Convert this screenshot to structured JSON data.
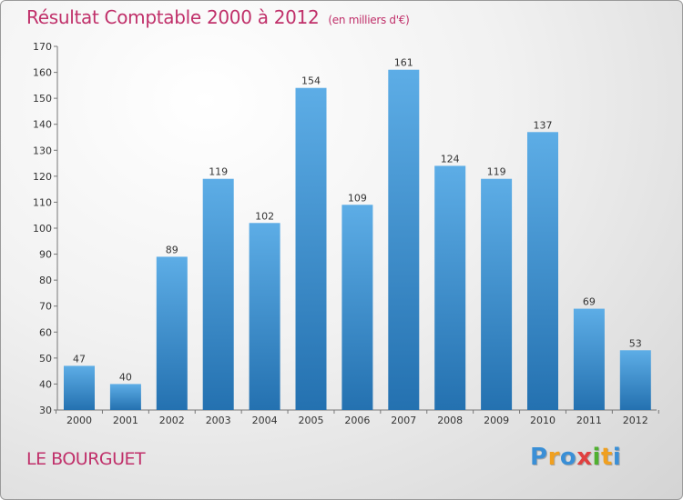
{
  "chart_data": {
    "type": "bar",
    "title": "Résultat Comptable 2000 à 2012",
    "subtitle": "(en milliers d'€)",
    "categories": [
      "2000",
      "2001",
      "2002",
      "2003",
      "2004",
      "2005",
      "2006",
      "2007",
      "2008",
      "2009",
      "2010",
      "2011",
      "2012"
    ],
    "values": [
      47,
      40,
      89,
      119,
      102,
      154,
      109,
      161,
      124,
      119,
      137,
      69,
      53
    ],
    "yticks": [
      30,
      40,
      50,
      60,
      70,
      80,
      90,
      100,
      110,
      120,
      130,
      140,
      150,
      160,
      170
    ],
    "ylim": [
      30,
      170
    ],
    "xlabel": "",
    "ylabel": "",
    "grid": false,
    "colors": {
      "bar_top": "#5dade6",
      "bar_bottom": "#2471b0",
      "title": "#c0306a"
    }
  },
  "commune": "LE BOURGUET",
  "logo": {
    "letters": [
      "P",
      "r",
      "o",
      "x",
      "i",
      "t",
      "i"
    ],
    "colors": [
      "#3a8fd6",
      "#f0a020",
      "#3a8fd6",
      "#e04040",
      "#50b030",
      "#f0a020",
      "#3a8fd6"
    ]
  }
}
